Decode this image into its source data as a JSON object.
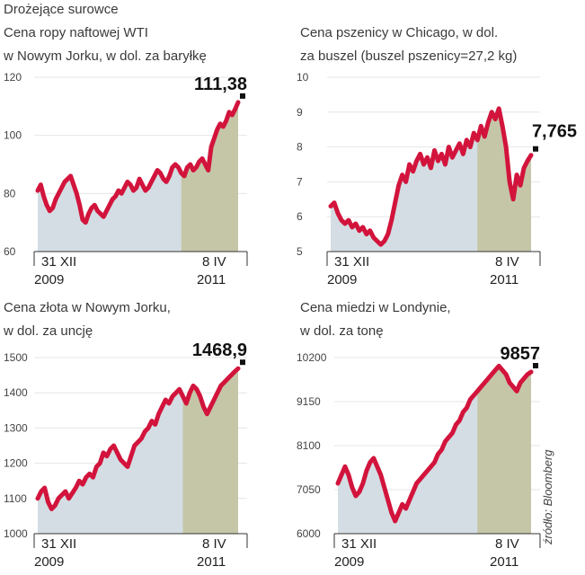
{
  "page_title": "Drożejące surowce",
  "source": "źródło: Bloomberg",
  "colors": {
    "series": "#d2143c",
    "area": "#d4dde3",
    "area_recent": "#c3c3a1",
    "marker": "#111111"
  },
  "chart_data": [
    {
      "type": "area",
      "title": "Cena ropy naftowej WTI\nw Nowym Jorku, w dol. za baryłkę",
      "x_start": "31 XII 2009",
      "x_end": "8 IV 2011",
      "x_labels": [
        {
          "day": "31 XII",
          "year": "2009"
        },
        {
          "day": "8 IV",
          "year": "2011"
        }
      ],
      "ylim": [
        60,
        120
      ],
      "yticks": [
        "120",
        "100",
        "80",
        "60"
      ],
      "last_value_label": "111,38",
      "values": [
        81,
        83,
        79,
        76,
        74,
        75,
        78,
        80,
        82,
        84,
        85,
        86,
        83,
        80,
        76,
        71,
        70,
        73,
        75,
        76,
        74,
        73,
        72,
        74,
        76,
        78,
        79,
        81,
        80,
        82,
        84,
        83,
        81,
        82,
        85,
        83,
        81,
        82,
        84,
        86,
        88,
        87,
        85,
        84,
        86,
        89,
        90,
        89,
        87,
        86,
        89,
        90,
        88,
        89,
        91,
        92,
        90,
        88,
        96,
        99,
        102,
        104,
        103,
        105,
        108,
        107,
        109,
        111.38
      ]
    },
    {
      "type": "area",
      "title": "Cena pszenicy w Chicago, w dol.\nza buszel (buszel pszenicy=27,2 kg)",
      "x_start": "31 XII 2009",
      "x_end": "8 IV 2011",
      "x_labels": [
        {
          "day": "31 XII",
          "year": "2009"
        },
        {
          "day": "8 IV",
          "year": "2011"
        }
      ],
      "ylim": [
        5,
        10
      ],
      "yticks": [
        "10",
        "9",
        "8",
        "7",
        "6",
        "5"
      ],
      "last_value_label": "7,765",
      "values": [
        6.3,
        6.4,
        6.1,
        5.9,
        5.8,
        5.9,
        5.7,
        5.8,
        5.6,
        5.7,
        5.5,
        5.6,
        5.4,
        5.3,
        5.2,
        5.3,
        5.5,
        5.9,
        6.4,
        6.9,
        7.2,
        7.0,
        7.5,
        7.3,
        7.6,
        7.8,
        7.5,
        7.7,
        7.4,
        7.9,
        7.6,
        7.8,
        7.5,
        8.0,
        7.7,
        7.9,
        8.1,
        7.8,
        8.2,
        8.0,
        8.4,
        8.2,
        8.6,
        8.3,
        8.7,
        9.0,
        8.8,
        9.1,
        8.6,
        8.0,
        7.0,
        6.5,
        7.2,
        6.9,
        7.4,
        7.6,
        7.765
      ]
    },
    {
      "type": "area",
      "title": "Cena złota w Nowym Jorku,\nw dol. za uncję",
      "x_start": "31 XII 2009",
      "x_end": "8 IV 2011",
      "x_labels": [
        {
          "day": "31 XII",
          "year": "2009"
        },
        {
          "day": "8 IV",
          "year": "2011"
        }
      ],
      "ylim": [
        1000,
        1500
      ],
      "yticks": [
        "1500",
        "1400",
        "1300",
        "1200",
        "1100",
        "1000"
      ],
      "last_value_label": "1468,9",
      "values": [
        1100,
        1120,
        1130,
        1090,
        1070,
        1080,
        1100,
        1110,
        1120,
        1100,
        1115,
        1130,
        1150,
        1140,
        1160,
        1170,
        1160,
        1190,
        1200,
        1230,
        1220,
        1240,
        1250,
        1230,
        1210,
        1200,
        1190,
        1220,
        1250,
        1260,
        1270,
        1290,
        1300,
        1320,
        1310,
        1340,
        1360,
        1380,
        1370,
        1390,
        1400,
        1410,
        1390,
        1370,
        1400,
        1420,
        1410,
        1390,
        1360,
        1340,
        1360,
        1380,
        1400,
        1420,
        1430,
        1440,
        1450,
        1460,
        1468.9
      ]
    },
    {
      "type": "area",
      "title": "Cena miedzi w Londynie,\nw dol. za tonę",
      "x_start": "31 XII 2009",
      "x_end": "8 IV 2011",
      "x_labels": [
        {
          "day": "31 XII",
          "year": "2009"
        },
        {
          "day": "8 IV",
          "year": "2011"
        }
      ],
      "ylim": [
        6000,
        10200
      ],
      "yticks": [
        "10200",
        "9150",
        "8100",
        "7050",
        "6000"
      ],
      "last_value_label": "9857",
      "values": [
        7200,
        7400,
        7600,
        7400,
        7100,
        6900,
        7000,
        7200,
        7500,
        7700,
        7800,
        7600,
        7400,
        7100,
        6800,
        6500,
        6300,
        6500,
        6700,
        6600,
        6800,
        7000,
        7200,
        7300,
        7400,
        7500,
        7600,
        7700,
        7900,
        8000,
        8200,
        8300,
        8400,
        8600,
        8700,
        8900,
        9000,
        9200,
        9300,
        9400,
        9500,
        9600,
        9700,
        9800,
        9900,
        10000,
        9900,
        9800,
        9600,
        9500,
        9400,
        9600,
        9700,
        9800,
        9857
      ]
    }
  ]
}
